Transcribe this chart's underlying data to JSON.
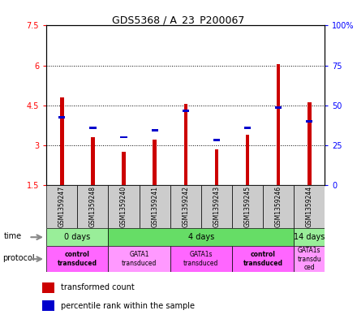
{
  "title": "GDS5368 / A_23_P200067",
  "samples": [
    "GSM1359247",
    "GSM1359248",
    "GSM1359240",
    "GSM1359241",
    "GSM1359242",
    "GSM1359243",
    "GSM1359245",
    "GSM1359246",
    "GSM1359244"
  ],
  "red_values": [
    4.8,
    3.3,
    2.75,
    3.2,
    4.55,
    2.85,
    3.4,
    6.05,
    4.6
  ],
  "blue_values": [
    4.05,
    3.65,
    3.3,
    3.55,
    4.3,
    3.2,
    3.65,
    4.4,
    3.9
  ],
  "ymin": 1.5,
  "ymax": 7.5,
  "yticks_left": [
    1.5,
    3.0,
    4.5,
    6.0,
    7.5
  ],
  "yticks_right": [
    0,
    25,
    50,
    75,
    100
  ],
  "ytick_labels_left": [
    "1.5",
    "3",
    "4.5",
    "6",
    "7.5"
  ],
  "ytick_labels_right": [
    "0",
    "25",
    "50",
    "75",
    "100%"
  ],
  "time_groups": [
    {
      "label": "0 days",
      "start": 0,
      "end": 2,
      "color": "#99ee99"
    },
    {
      "label": "4 days",
      "start": 2,
      "end": 8,
      "color": "#66dd66"
    },
    {
      "label": "14 days",
      "start": 8,
      "end": 9,
      "color": "#99ee99"
    }
  ],
  "protocol_groups": [
    {
      "label": "control\ntransduced",
      "start": 0,
      "end": 2,
      "color": "#ff66ff",
      "bold": true
    },
    {
      "label": "GATA1\ntransduced",
      "start": 2,
      "end": 4,
      "color": "#ff99ff",
      "bold": false
    },
    {
      "label": "GATA1s\ntransduced",
      "start": 4,
      "end": 6,
      "color": "#ff66ff",
      "bold": false
    },
    {
      "label": "control\ntransduced",
      "start": 6,
      "end": 8,
      "color": "#ff66ff",
      "bold": true
    },
    {
      "label": "GATA1s\ntransdu\nced",
      "start": 8,
      "end": 9,
      "color": "#ff99ff",
      "bold": false
    }
  ],
  "bar_bottom": 1.5,
  "bar_width": 0.12,
  "red_color": "#cc0000",
  "blue_color": "#0000cc",
  "sample_box_color": "#cccccc"
}
